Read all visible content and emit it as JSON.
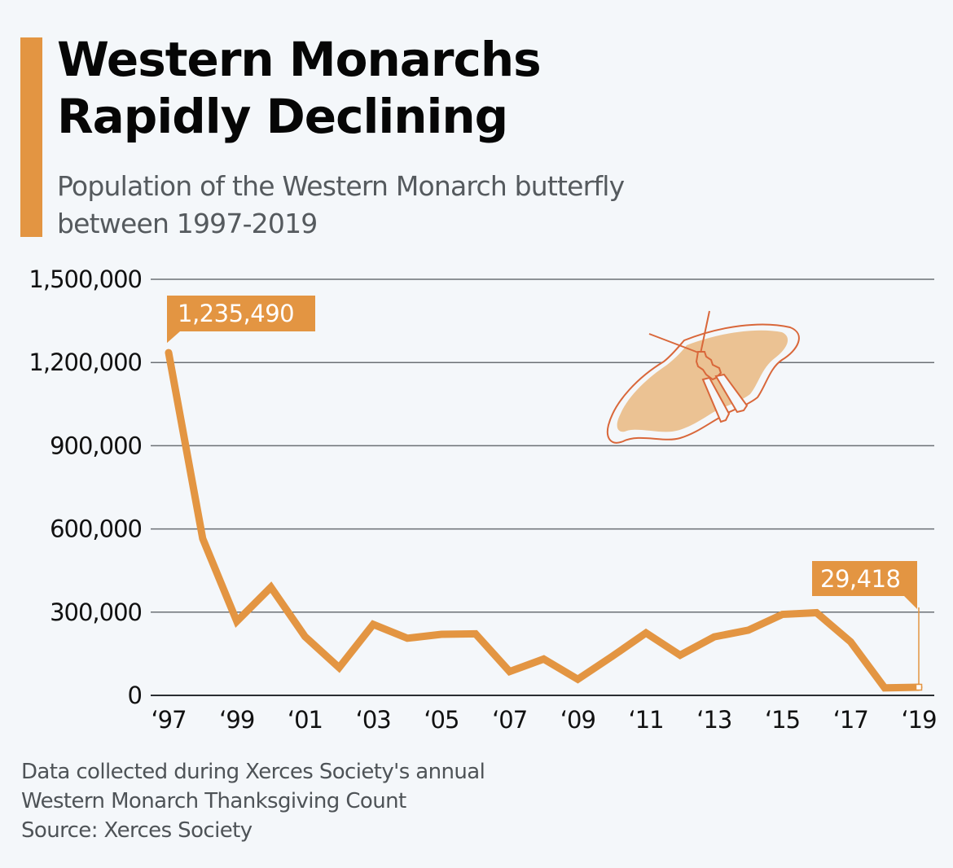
{
  "header": {
    "title_line1": "Western Monarchs",
    "title_line2": "Rapidly Declining",
    "subtitle_line1": "Population of the Western Monarch butterfly",
    "subtitle_line2": "between 1997-2019"
  },
  "colors": {
    "accent": "#e39542",
    "background": "#f4f7fa",
    "gridline": "#6b7075",
    "butterfly_fill": "#ebc293",
    "butterfly_stroke": "#d9673a"
  },
  "decoration": {
    "icon": "butterfly-icon"
  },
  "footer": {
    "note_line1": "Data collected during Xerces Society's annual",
    "note_line2": "Western Monarch Thanksgiving Count",
    "source": "Source: Xerces Society"
  },
  "chart_data": {
    "type": "line",
    "title": "Western Monarchs Rapidly Declining",
    "subtitle": "Population of the Western Monarch butterfly between 1997-2019",
    "xlabel": "",
    "ylabel": "",
    "x": [
      1997,
      1998,
      1999,
      2000,
      2001,
      2002,
      2003,
      2004,
      2005,
      2006,
      2007,
      2008,
      2009,
      2010,
      2011,
      2012,
      2013,
      2014,
      2015,
      2016,
      2017,
      2018,
      2019
    ],
    "series": [
      {
        "name": "Western Monarch population",
        "values": [
          1235490,
          565000,
          267000,
          390000,
          212000,
          100000,
          256000,
          206000,
          220000,
          222000,
          86000,
          131000,
          58000,
          140000,
          225000,
          145000,
          211000,
          235000,
          292000,
          298000,
          193000,
          27000,
          29418
        ]
      }
    ],
    "ylim": [
      0,
      1500000
    ],
    "xlim": [
      1997,
      2019
    ],
    "y_ticks": [
      {
        "value": 0,
        "label": "0"
      },
      {
        "value": 300000,
        "label": "300,000"
      },
      {
        "value": 600000,
        "label": "600,000"
      },
      {
        "value": 900000,
        "label": "900,000"
      },
      {
        "value": 1200000,
        "label": "1,200,000"
      },
      {
        "value": 1500000,
        "label": "1,500,000"
      }
    ],
    "x_ticks": [
      {
        "value": 1997,
        "label": "‘97"
      },
      {
        "value": 1999,
        "label": "‘99"
      },
      {
        "value": 2001,
        "label": "‘01"
      },
      {
        "value": 2003,
        "label": "‘03"
      },
      {
        "value": 2005,
        "label": "‘05"
      },
      {
        "value": 2007,
        "label": "‘07"
      },
      {
        "value": 2009,
        "label": "‘09"
      },
      {
        "value": 2011,
        "label": "‘11"
      },
      {
        "value": 2013,
        "label": "‘13"
      },
      {
        "value": 2015,
        "label": "‘15"
      },
      {
        "value": 2017,
        "label": "‘17"
      },
      {
        "value": 2019,
        "label": "‘19"
      }
    ],
    "annotations": [
      {
        "x": 1997,
        "value": 1235490,
        "label": "1,235,490"
      },
      {
        "x": 2019,
        "value": 29418,
        "label": "29,418"
      }
    ],
    "grid": true,
    "legend": "none"
  }
}
